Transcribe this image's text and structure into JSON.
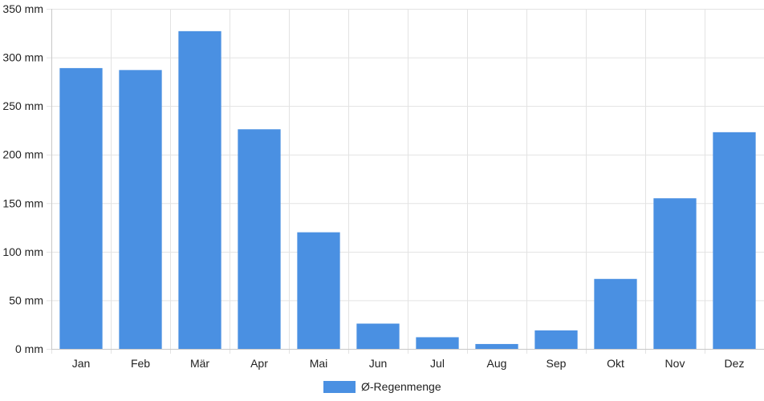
{
  "chart_data": {
    "type": "bar",
    "categories": [
      "Jan",
      "Feb",
      "Mär",
      "Apr",
      "Mai",
      "Jun",
      "Jul",
      "Aug",
      "Sep",
      "Okt",
      "Nov",
      "Dez"
    ],
    "series": [
      {
        "name": "Ø-Regenmenge",
        "values": [
          289,
          287,
          327,
          226,
          120,
          26,
          12,
          5,
          19,
          72,
          155,
          223
        ],
        "color": "#4a90e2"
      }
    ],
    "y_unit": "mm",
    "ylim": [
      0,
      350
    ],
    "y_ticks": [
      0,
      50,
      100,
      150,
      200,
      250,
      300,
      350
    ],
    "y_tick_labels": [
      "0 mm",
      "50 mm",
      "100 mm",
      "150 mm",
      "200 mm",
      "250 mm",
      "300 mm",
      "350 mm"
    ],
    "grid": true,
    "legend_position": "bottom"
  }
}
